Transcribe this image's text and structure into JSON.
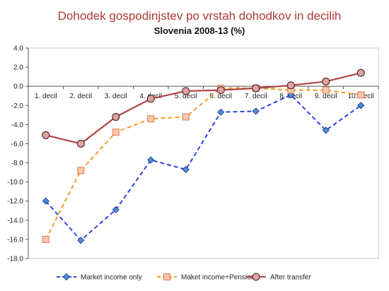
{
  "chart_data": {
    "type": "line",
    "title": "Dohodek gospodinjstev po vrstah dohodkov in decilih",
    "subtitle": "Slovenia 2008-13 (%)",
    "xlabel": "",
    "ylabel": "",
    "categories": [
      "1. decil",
      "2. decil",
      "3. decil",
      "4. decil",
      "5. decil",
      "6. decil",
      "7. decil",
      "8. decil",
      "9. decil",
      "10. decil"
    ],
    "ylim": [
      -18,
      4
    ],
    "yticks": [
      "4.0",
      "2.0",
      "0.0",
      "-2.0",
      "-4.0",
      "-6.0",
      "-8.0",
      "-10.0",
      "-12.0",
      "-14.0",
      "-16.0",
      "-18.0"
    ],
    "ytick_values": [
      4,
      2,
      0,
      -2,
      -4,
      -6,
      -8,
      -10,
      -12,
      -14,
      -16,
      -18
    ],
    "grid": false,
    "legend_position": "bottom",
    "series": [
      {
        "name": "Market income only",
        "values": [
          -12.0,
          -16.1,
          -12.9,
          -7.7,
          -8.7,
          -2.7,
          -2.6,
          -0.9,
          -4.6,
          -2.0
        ],
        "color": "#2b45e0",
        "marker_fill": "#4a8fd6",
        "style": "dashed",
        "marker": "diamond"
      },
      {
        "name": "Maket income+Pension",
        "values": [
          -16.0,
          -8.8,
          -4.8,
          -3.4,
          -3.2,
          -0.2,
          -0.2,
          -0.4,
          -0.4,
          -0.9
        ],
        "color": "#f29a2e",
        "marker_fill": "#f8c6b0",
        "style": "dashed",
        "marker": "square"
      },
      {
        "name": "After transfer",
        "values": [
          -5.1,
          -6.0,
          -3.2,
          -1.3,
          -0.5,
          -0.4,
          -0.2,
          0.1,
          0.5,
          1.4
        ],
        "color": "#b04444",
        "marker_fill": "#d9a5a5",
        "style": "solid",
        "marker": "circle"
      }
    ]
  }
}
